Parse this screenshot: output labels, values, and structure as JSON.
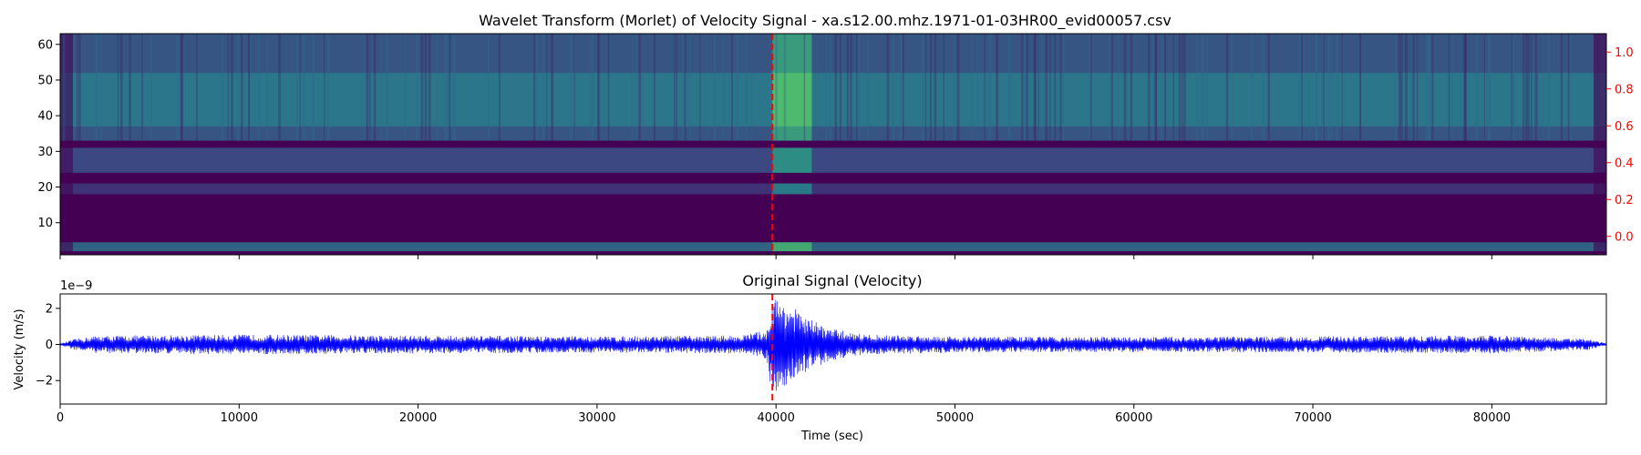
{
  "chart_data": [
    {
      "type": "heatmap",
      "title": "Wavelet Transform (Morlet) of Velocity Signal - xa.s12.00.mhz.1971-01-03HR00_evid00057.csv",
      "xlabel": "",
      "ylabel": "",
      "xlim": [
        0,
        86400
      ],
      "ylim": [
        1,
        63
      ],
      "x_ticks": [
        0,
        10000,
        20000,
        30000,
        40000,
        50000,
        60000,
        70000,
        80000
      ],
      "y_ticks": [
        10,
        20,
        30,
        40,
        50,
        60
      ],
      "y_tick_labels": [
        "10",
        "20",
        "30",
        "40",
        "50",
        "60"
      ],
      "right_axis": {
        "ylim": [
          -0.1,
          1.1
        ],
        "ticks": [
          0.0,
          0.2,
          0.4,
          0.6,
          0.8,
          1.0
        ],
        "tick_labels": [
          "0.0",
          "0.2",
          "0.4",
          "0.6",
          "0.8",
          "1.0"
        ],
        "color": "#ff0000"
      },
      "colormap": "viridis",
      "bands": [
        {
          "y0": 33,
          "y1": 63,
          "intensity": 0.32
        },
        {
          "y0": 37,
          "y1": 52,
          "intensity": 0.42
        },
        {
          "y0": 24,
          "y1": 31,
          "intensity": 0.26
        },
        {
          "y0": 18,
          "y1": 21,
          "intensity": 0.18
        },
        {
          "y0": 2,
          "y1": 4.5,
          "intensity": 0.38
        }
      ],
      "event_band": {
        "x0": 39800,
        "x1": 42000,
        "intensity": 0.72
      },
      "marker_x": 39800,
      "marker_color": "#ff0000"
    },
    {
      "type": "line",
      "title": "Original Signal (Velocity)",
      "xlabel": "Time (sec)",
      "ylabel": "Velocity (m/s)",
      "xlim": [
        0,
        86400
      ],
      "ylim": [
        -3.3,
        2.8
      ],
      "scale_label": "1e−9",
      "x_ticks": [
        0,
        10000,
        20000,
        30000,
        40000,
        50000,
        60000,
        70000,
        80000
      ],
      "x_tick_labels": [
        "0",
        "10000",
        "20000",
        "30000",
        "40000",
        "50000",
        "60000",
        "70000",
        "80000"
      ],
      "y_ticks": [
        -2,
        0,
        2
      ],
      "y_tick_labels": [
        "−2",
        "0",
        "2"
      ],
      "series": [
        {
          "color": "#0000ff",
          "envelope": {
            "x": [
              0,
              800,
              2000,
              10000,
              20000,
              30000,
              38000,
              39500,
              39800,
              40500,
              41500,
              43000,
              45000,
              50000,
              60000,
              70000,
              80000,
              85500,
              86400
            ],
            "amplitude": [
              0.05,
              0.3,
              0.48,
              0.55,
              0.5,
              0.45,
              0.5,
              0.8,
              2.6,
              2.5,
              1.6,
              0.9,
              0.55,
              0.45,
              0.42,
              0.45,
              0.5,
              0.3,
              0.05
            ]
          }
        }
      ],
      "marker_x": 39800,
      "marker_color": "#ff0000"
    }
  ]
}
